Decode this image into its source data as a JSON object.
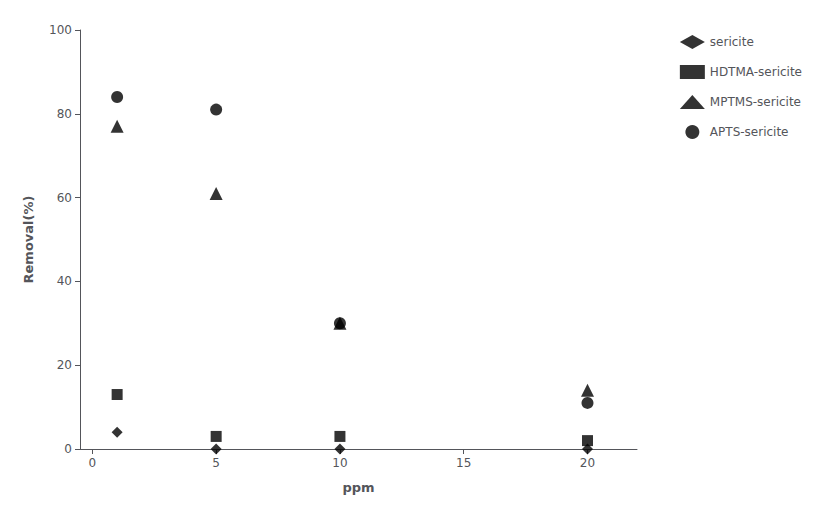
{
  "chart_data": {
    "type": "scatter",
    "xlabel": "ppm",
    "ylabel": "Removal(%)",
    "x": [
      1,
      5,
      10,
      20
    ],
    "series": [
      {
        "name": "sericite",
        "values": [
          4,
          0,
          0,
          0
        ],
        "marker": "diamond",
        "color": "black"
      },
      {
        "name": "HDTMA-sericite",
        "values": [
          13,
          3,
          3,
          2
        ],
        "marker": "square",
        "color": "black"
      },
      {
        "name": "MPTMS-sericite",
        "values": [
          77,
          61,
          30,
          14
        ],
        "marker": "triangle",
        "color": "black"
      },
      {
        "name": "APTS-sericite",
        "values": [
          84,
          81,
          30,
          11
        ],
        "marker": "circle",
        "color": "black"
      }
    ],
    "xlim": [
      -0.5,
      22
    ],
    "xticks": [
      0,
      5,
      10,
      15,
      20
    ],
    "ylim": [
      0,
      100
    ],
    "yticks": [
      0,
      20,
      40,
      60,
      80,
      100
    ],
    "grid": false,
    "legend": "right"
  }
}
